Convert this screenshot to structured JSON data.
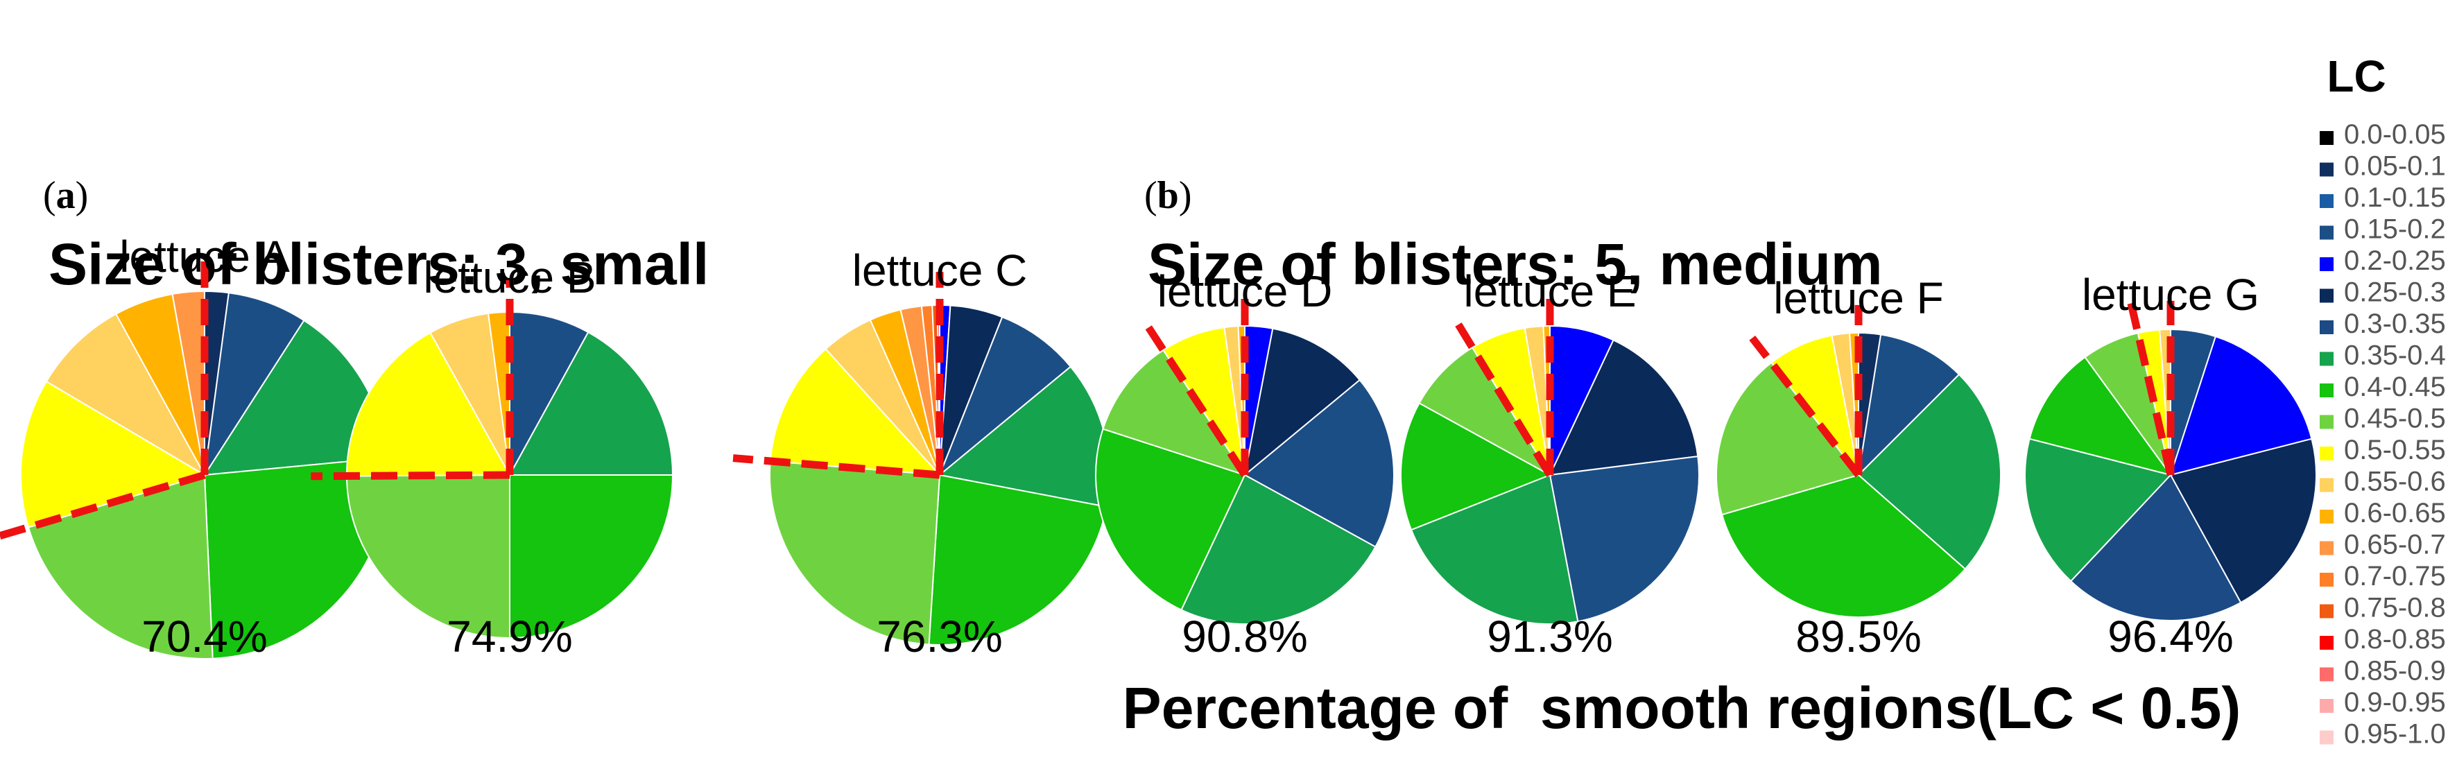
{
  "panels": [
    {
      "label_open": "(",
      "label_letter": "a",
      "label_close": ")",
      "heading": "Size of blisters: 3, small"
    },
    {
      "label_open": "(",
      "label_letter": "b",
      "label_close": ")",
      "heading": "Size of blisters: 5, medium"
    }
  ],
  "footer_title": "Percentage of  smooth regions(LC < 0.5)",
  "legend": {
    "title": "LC",
    "categories": [
      "0.0-0.05",
      "0.05-0.1",
      "0.1-0.15",
      "0.15-0.2",
      "0.2-0.25",
      "0.25-0.3",
      "0.3-0.35",
      "0.35-0.4",
      "0.4-0.45",
      "0.45-0.5",
      "0.5-0.55",
      "0.55-0.6",
      "0.6-0.65",
      "0.65-0.7",
      "0.7-0.75",
      "0.75-0.8",
      "0.8-0.85",
      "0.85-0.9",
      "0.9-0.95",
      "0.95-1.0"
    ],
    "colors": [
      "#000000",
      "#0f2f60",
      "#1a5da6",
      "#1c4e86",
      "#0000ff",
      "#0a2a5a",
      "#1b4a85",
      "#16a34d",
      "#14c40e",
      "#6fd341",
      "#ffff00",
      "#ffd15e",
      "#ffb300",
      "#ff9644",
      "#ff7f27",
      "#ef5b12",
      "#ff0000",
      "#ff6b6b",
      "#ffaaaa",
      "#ffcccc"
    ]
  },
  "chart_data": [
    {
      "type": "pie",
      "title": "lettuce A",
      "panel": "a",
      "percentage_label": "70.4%",
      "categories": [
        "0.05-0.1",
        "0.15-0.2",
        "0.35-0.4",
        "0.4-0.45",
        "0.45-0.5",
        "0.5-0.55",
        "0.55-0.6",
        "0.6-0.65",
        "0.65-0.7"
      ],
      "values": [
        2.1,
        7.0,
        14.4,
        25.8,
        21.1,
        13.1,
        8.5,
        5.2,
        2.8
      ]
    },
    {
      "type": "pie",
      "title": "lettuce B",
      "panel": "a",
      "percentage_label": "74.9%",
      "categories": [
        "0.15-0.2",
        "0.35-0.4",
        "0.4-0.45",
        "0.45-0.5",
        "0.5-0.55",
        "0.55-0.6",
        "0.6-0.65"
      ],
      "values": [
        8.0,
        17.0,
        25.0,
        24.9,
        17.0,
        6.0,
        2.1
      ]
    },
    {
      "type": "pie",
      "title": "lettuce C",
      "panel": "b",
      "percentage_label": "76.3%",
      "categories": [
        "0.2-0.25",
        "0.25-0.3",
        "0.15-0.2",
        "0.35-0.4",
        "0.4-0.45",
        "0.45-0.5",
        "0.5-0.55",
        "0.55-0.6",
        "0.6-0.65",
        "0.65-0.7",
        "0.7-0.75",
        "0.75-0.8",
        "0.8-0.85"
      ],
      "values": [
        1.0,
        5.0,
        8.0,
        14.0,
        23.0,
        25.3,
        12.0,
        5.0,
        3.0,
        2.0,
        1.0,
        0.5,
        0.2
      ]
    },
    {
      "type": "pie",
      "title": "lettuce D",
      "panel": "b",
      "percentage_label": "90.8%",
      "categories": [
        "0.2-0.25",
        "0.25-0.3",
        "0.15-0.2",
        "0.35-0.4",
        "0.4-0.45",
        "0.45-0.5",
        "0.5-0.55",
        "0.55-0.6",
        "0.6-0.65"
      ],
      "values": [
        3.0,
        11.0,
        19.0,
        24.0,
        23.0,
        10.8,
        7.0,
        1.5,
        0.7
      ]
    },
    {
      "type": "pie",
      "title": "lettuce E",
      "panel": "b",
      "percentage_label": "91.3%",
      "categories": [
        "0.2-0.25",
        "0.25-0.3",
        "0.15-0.2",
        "0.35-0.4",
        "0.4-0.45",
        "0.45-0.5",
        "0.5-0.55",
        "0.55-0.6",
        "0.6-0.65"
      ],
      "values": [
        7.0,
        16.0,
        24.0,
        22.0,
        14.0,
        8.3,
        6.0,
        2.0,
        0.7
      ]
    },
    {
      "type": "pie",
      "title": "lettuce F",
      "panel": "b",
      "percentage_label": "89.5%",
      "categories": [
        "0.05-0.1",
        "0.15-0.2",
        "0.35-0.4",
        "0.4-0.45",
        "0.45-0.5",
        "0.5-0.55",
        "0.55-0.6",
        "0.6-0.65"
      ],
      "values": [
        2.5,
        10.0,
        24.0,
        34.0,
        19.0,
        7.5,
        2.0,
        1.0
      ]
    },
    {
      "type": "pie",
      "title": "lettuce G",
      "panel": "b",
      "percentage_label": "96.4%",
      "categories": [
        "0.15-0.2",
        "0.2-0.25",
        "0.25-0.3",
        "0.3-0.35",
        "0.35-0.4",
        "0.4-0.45",
        "0.45-0.5",
        "0.5-0.55",
        "0.55-0.6"
      ],
      "values": [
        5.0,
        16.0,
        21.0,
        20.0,
        17.0,
        11.0,
        6.4,
        2.4,
        1.2
      ]
    }
  ]
}
